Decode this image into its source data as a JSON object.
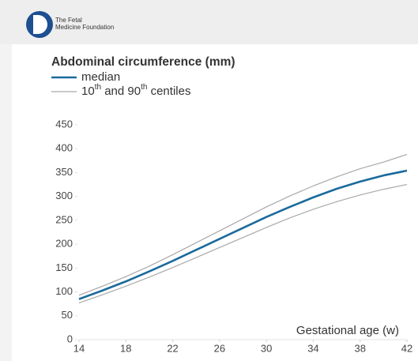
{
  "header": {
    "logo_lines": [
      "The Fetal",
      "Medicine Foundation"
    ]
  },
  "chart_data": {
    "type": "line",
    "title": "Abdominal circumference (mm)",
    "xlabel": "Gestational age (w)",
    "x": [
      14,
      16,
      18,
      20,
      22,
      24,
      26,
      28,
      30,
      32,
      34,
      36,
      38,
      40,
      42
    ],
    "series": [
      {
        "name": "median",
        "color": "#1b6a9c",
        "values": [
          85,
          103,
          122,
          143,
          165,
          188,
          211,
          234,
          257,
          278,
          298,
          316,
          331,
          344,
          354
        ]
      },
      {
        "name": "10th and 90th centiles",
        "color": "#a9a9a9",
        "values": [
          77,
          94,
          112,
          131,
          151,
          172,
          193,
          214,
          235,
          255,
          273,
          289,
          303,
          315,
          325
        ],
        "values_upper": [
          93,
          112,
          132,
          154,
          178,
          203,
          228,
          253,
          278,
          301,
          322,
          341,
          358,
          372,
          388
        ]
      }
    ],
    "xlim": [
      14,
      42
    ],
    "xticks": [
      14,
      18,
      22,
      26,
      30,
      34,
      38,
      42
    ],
    "ylim": [
      0,
      450
    ],
    "yticks": [
      0,
      50,
      100,
      150,
      200,
      250,
      300,
      350,
      400,
      450
    ]
  }
}
